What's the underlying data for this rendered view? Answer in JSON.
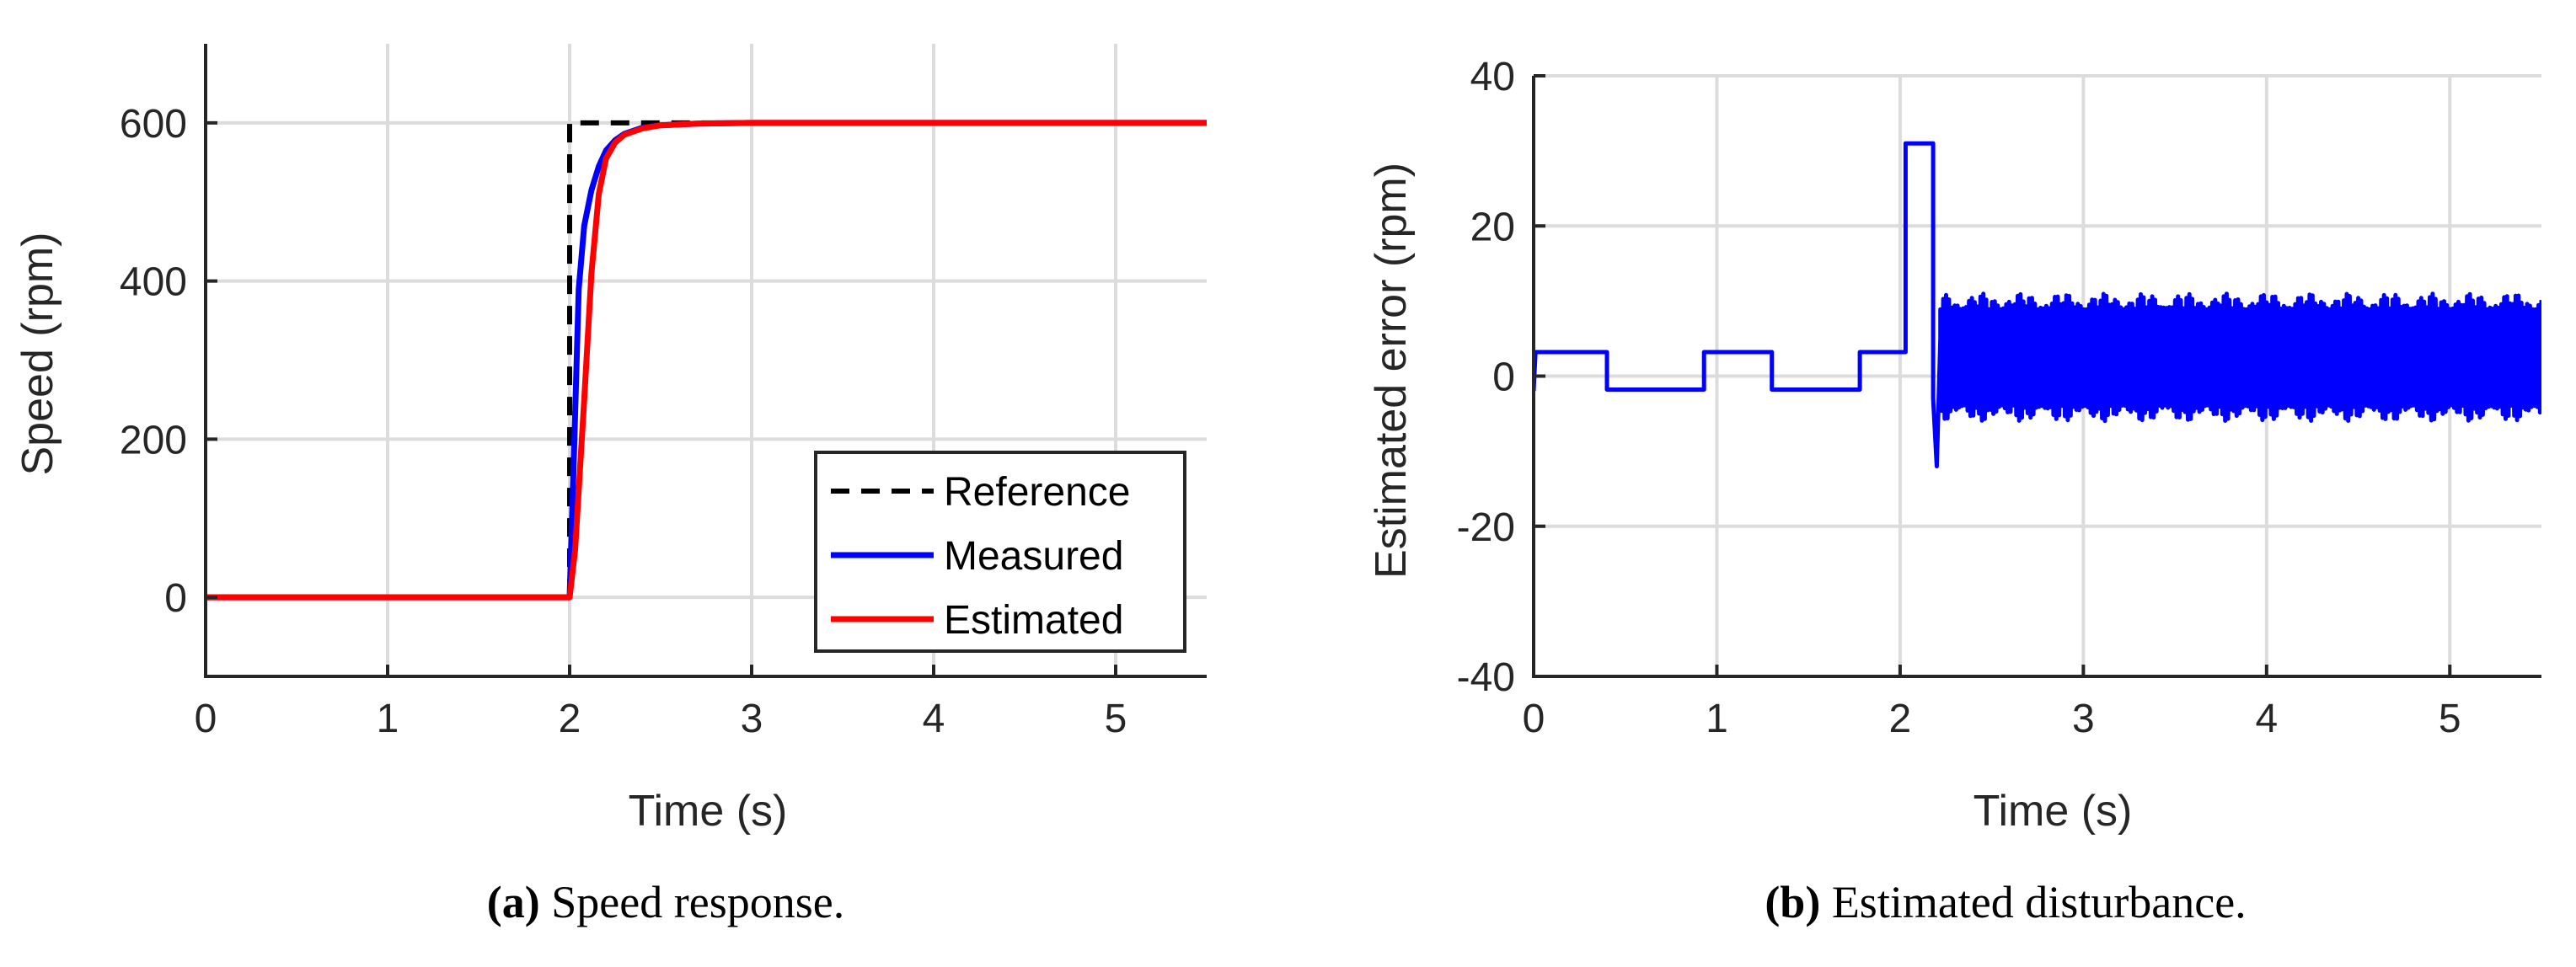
{
  "chart_data": [
    {
      "type": "line",
      "panel_label": "(a)",
      "caption": "Speed response.",
      "xlabel": "Time (s)",
      "ylabel": "Speed (rpm)",
      "xlim": [
        0,
        5.5
      ],
      "ylim": [
        -100,
        700
      ],
      "xticks": [
        0,
        1,
        2,
        3,
        4,
        5
      ],
      "yticks": [
        0,
        200,
        400,
        600
      ],
      "grid": true,
      "legend_position": "bottom-right",
      "series": [
        {
          "name": "Reference",
          "style": "dashed",
          "color": "#000000",
          "x": [
            0,
            2.0,
            2.0,
            5.5
          ],
          "y": [
            0,
            0,
            600,
            600
          ]
        },
        {
          "name": "Measured",
          "style": "solid",
          "color": "#0000ff",
          "x": [
            0,
            2.0,
            2.02,
            2.05,
            2.08,
            2.12,
            2.16,
            2.2,
            2.25,
            2.3,
            2.4,
            2.5,
            2.7,
            3.0,
            5.5
          ],
          "y": [
            0,
            0,
            150,
            390,
            470,
            515,
            545,
            565,
            578,
            586,
            594,
            597,
            599,
            600,
            600
          ]
        },
        {
          "name": "Estimated",
          "style": "solid",
          "color": "#ff0000",
          "x": [
            0,
            2.0,
            2.03,
            2.08,
            2.12,
            2.16,
            2.2,
            2.25,
            2.3,
            2.4,
            2.5,
            2.7,
            3.0,
            5.5
          ],
          "y": [
            0,
            0,
            60,
            250,
            410,
            510,
            555,
            575,
            585,
            593,
            597,
            599,
            600,
            600
          ]
        }
      ]
    },
    {
      "type": "line",
      "panel_label": "(b)",
      "caption": "Estimated disturbance.",
      "xlabel": "Time (s)",
      "ylabel": "Estimated error (rpm)",
      "xlim": [
        0,
        5.5
      ],
      "ylim": [
        -40,
        40
      ],
      "xticks": [
        0,
        1,
        2,
        3,
        4,
        5
      ],
      "yticks": [
        -40,
        -20,
        0,
        20,
        40
      ],
      "grid": true,
      "series": [
        {
          "color": "#0000ff",
          "x": [
            0,
            0.01,
            0.4,
            0.4,
            0.93,
            0.93,
            1.3,
            1.3,
            1.78,
            1.78,
            2.03,
            2.03,
            2.18,
            2.18,
            2.2,
            2.22
          ],
          "y": [
            -2,
            3.2,
            3.2,
            -1.8,
            -1.8,
            3.2,
            3.2,
            -1.8,
            -1.8,
            3.2,
            3.2,
            31,
            31,
            -3,
            -12,
            5
          ],
          "oscillation": {
            "x_start": 2.22,
            "x_end": 5.5,
            "center": 2.5,
            "amplitude": 8.5
          }
        }
      ]
    }
  ]
}
